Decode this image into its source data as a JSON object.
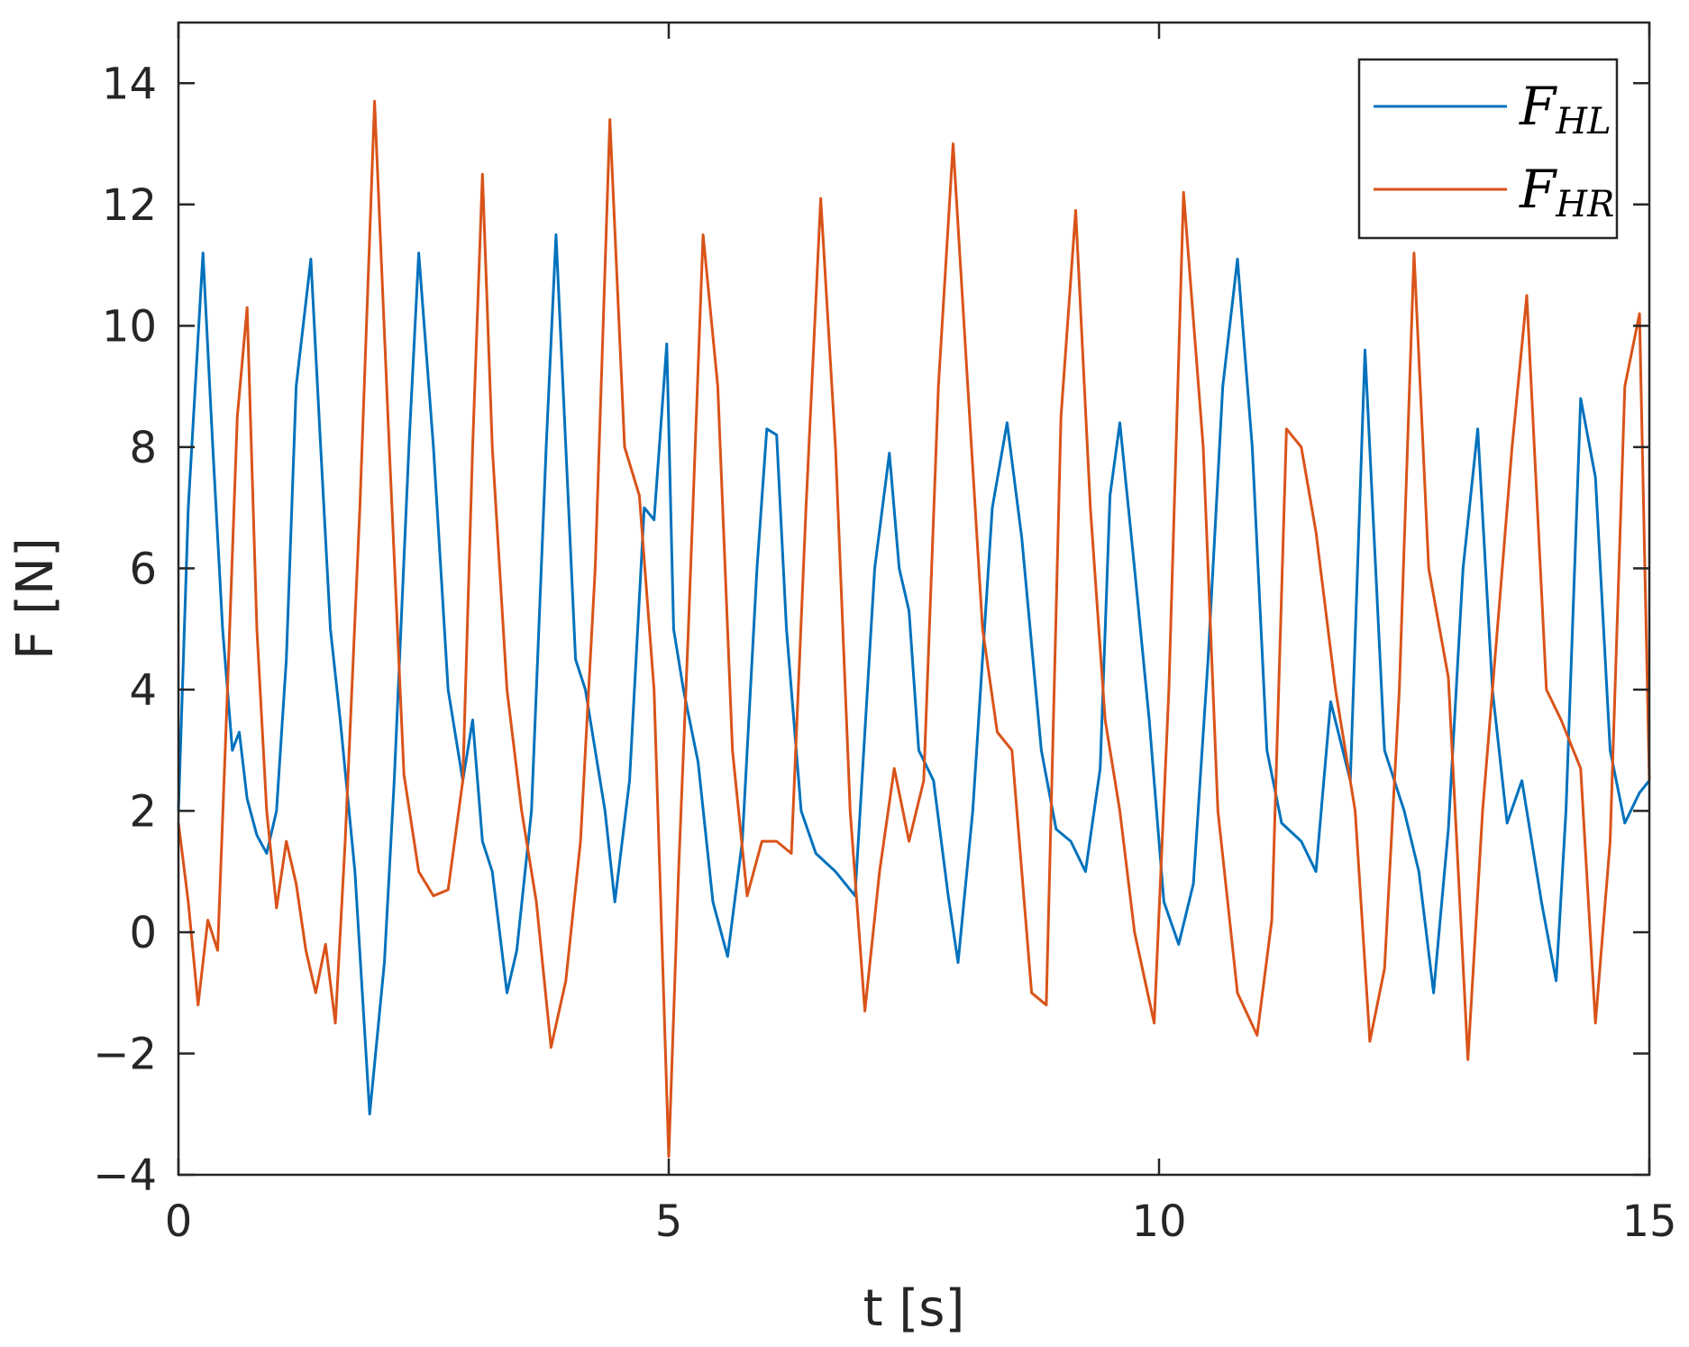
{
  "chart_data": {
    "type": "line",
    "title": "",
    "xlabel": "t [s]",
    "ylabel": "F [N]",
    "xlim": [
      0,
      15
    ],
    "ylim": [
      -4,
      15
    ],
    "xticks": [
      0,
      5,
      10,
      15
    ],
    "yticks": [
      -4,
      -2,
      0,
      2,
      4,
      6,
      8,
      10,
      12,
      14
    ],
    "xtick_labels": [
      "0",
      "5",
      "10",
      "15"
    ],
    "ytick_labels": [
      "−4",
      "−2",
      "0",
      "2",
      "4",
      "6",
      "8",
      "10",
      "12",
      "14"
    ],
    "grid": false,
    "legend_position": "top-right",
    "series": [
      {
        "name": "F",
        "subscript": "HL",
        "color": "#0072BD",
        "x": [
          0,
          0.1,
          0.25,
          0.35,
          0.45,
          0.55,
          0.62,
          0.7,
          0.8,
          0.9,
          1.0,
          1.1,
          1.2,
          1.35,
          1.45,
          1.55,
          1.65,
          1.8,
          1.95,
          2.1,
          2.2,
          2.35,
          2.45,
          2.6,
          2.75,
          2.9,
          3.0,
          3.1,
          3.2,
          3.35,
          3.45,
          3.6,
          3.75,
          3.85,
          3.95,
          4.05,
          4.15,
          4.25,
          4.35,
          4.45,
          4.6,
          4.75,
          4.85,
          4.98,
          5.05,
          5.15,
          5.3,
          5.45,
          5.6,
          5.75,
          5.9,
          6.0,
          6.1,
          6.2,
          6.35,
          6.5,
          6.7,
          6.9,
          7.1,
          7.25,
          7.35,
          7.45,
          7.55,
          7.7,
          7.85,
          7.95,
          8.1,
          8.3,
          8.45,
          8.6,
          8.8,
          8.95,
          9.1,
          9.25,
          9.4,
          9.5,
          9.6,
          9.75,
          9.9,
          10.05,
          10.2,
          10.35,
          10.5,
          10.65,
          10.8,
          10.95,
          11.1,
          11.25,
          11.45,
          11.6,
          11.75,
          11.95,
          12.1,
          12.3,
          12.5,
          12.65,
          12.8,
          12.95,
          13.1,
          13.25,
          13.4,
          13.55,
          13.7,
          13.9,
          14.05,
          14.15,
          14.3,
          14.45,
          14.6,
          14.75,
          14.9,
          15.0
        ],
        "y": [
          2.0,
          7.0,
          11.2,
          8.0,
          5.0,
          3.0,
          3.3,
          2.2,
          1.6,
          1.3,
          2.0,
          4.5,
          9.0,
          11.1,
          8.0,
          5.0,
          3.5,
          1.0,
          -3.0,
          -0.5,
          2.5,
          8.0,
          11.2,
          8.0,
          4.0,
          2.5,
          3.5,
          1.5,
          1.0,
          -1.0,
          -0.3,
          2.0,
          8.0,
          11.5,
          8.0,
          4.5,
          4.0,
          3.0,
          2.0,
          0.5,
          2.5,
          7.0,
          6.8,
          9.7,
          5.0,
          4.0,
          2.8,
          0.5,
          -0.4,
          1.5,
          6.0,
          8.3,
          8.2,
          5.0,
          2.0,
          1.3,
          1.0,
          0.6,
          6.0,
          7.9,
          6.0,
          5.3,
          3.0,
          2.5,
          0.6,
          -0.5,
          2.0,
          7.0,
          8.4,
          6.5,
          3.0,
          1.7,
          1.5,
          1.0,
          2.7,
          7.2,
          8.4,
          6.0,
          3.5,
          0.5,
          -0.2,
          0.8,
          4.5,
          9.0,
          11.1,
          8.0,
          3.0,
          1.8,
          1.5,
          1.0,
          3.8,
          2.5,
          9.6,
          3.0,
          2.0,
          1.0,
          -1.0,
          1.7,
          6.0,
          8.3,
          4.0,
          1.8,
          2.5,
          0.5,
          -0.8,
          2.0,
          8.8,
          7.5,
          3.0,
          1.8,
          2.3,
          2.5
        ]
      },
      {
        "name": "F",
        "subscript": "HR",
        "color": "#D95319",
        "x": [
          0,
          0.1,
          0.2,
          0.3,
          0.4,
          0.5,
          0.6,
          0.7,
          0.8,
          0.9,
          1.0,
          1.1,
          1.2,
          1.3,
          1.4,
          1.5,
          1.6,
          1.7,
          1.85,
          2.0,
          2.15,
          2.3,
          2.45,
          2.6,
          2.75,
          2.9,
          3.0,
          3.1,
          3.2,
          3.35,
          3.5,
          3.65,
          3.8,
          3.95,
          4.1,
          4.25,
          4.4,
          4.55,
          4.7,
          4.85,
          5.0,
          5.1,
          5.2,
          5.35,
          5.5,
          5.65,
          5.8,
          5.95,
          6.1,
          6.25,
          6.4,
          6.55,
          6.7,
          6.85,
          7.0,
          7.15,
          7.3,
          7.45,
          7.6,
          7.75,
          7.9,
          8.05,
          8.2,
          8.35,
          8.5,
          8.7,
          8.85,
          9.0,
          9.15,
          9.3,
          9.45,
          9.6,
          9.75,
          9.95,
          10.1,
          10.25,
          10.45,
          10.6,
          10.8,
          11.0,
          11.15,
          11.3,
          11.45,
          11.6,
          11.8,
          12.0,
          12.15,
          12.3,
          12.45,
          12.6,
          12.75,
          12.95,
          13.15,
          13.3,
          13.45,
          13.6,
          13.75,
          13.95,
          14.1,
          14.3,
          14.45,
          14.6,
          14.75,
          14.9,
          15.0
        ],
        "y": [
          1.8,
          0.5,
          -1.2,
          0.2,
          -0.3,
          4.0,
          8.5,
          10.3,
          5.0,
          2.0,
          0.4,
          1.5,
          0.8,
          -0.3,
          -1.0,
          -0.2,
          -1.5,
          1.5,
          7.0,
          13.7,
          8.0,
          2.6,
          1.0,
          0.6,
          0.7,
          2.5,
          8.0,
          12.5,
          8.0,
          4.0,
          2.0,
          0.5,
          -1.9,
          -0.8,
          1.5,
          6.0,
          13.4,
          8.0,
          7.2,
          4.0,
          -3.7,
          1.0,
          5.0,
          11.5,
          9.0,
          3.0,
          0.6,
          1.5,
          1.5,
          1.3,
          7.0,
          12.1,
          8.0,
          2.0,
          -1.3,
          1.0,
          2.7,
          1.5,
          2.5,
          9.0,
          13.0,
          9.0,
          5.0,
          3.3,
          3.0,
          -1.0,
          -1.2,
          8.5,
          11.9,
          7.0,
          3.5,
          2.0,
          0.0,
          -1.5,
          4.0,
          12.2,
          8.0,
          2.0,
          -1.0,
          -1.7,
          0.2,
          8.3,
          8.0,
          6.6,
          4.0,
          2.0,
          -1.8,
          -0.6,
          4.0,
          11.2,
          6.0,
          4.2,
          -2.1,
          2.0,
          5.0,
          8.0,
          10.5,
          4.0,
          3.5,
          2.7,
          -1.5,
          1.5,
          9.0,
          10.2,
          2.5
        ]
      }
    ]
  }
}
